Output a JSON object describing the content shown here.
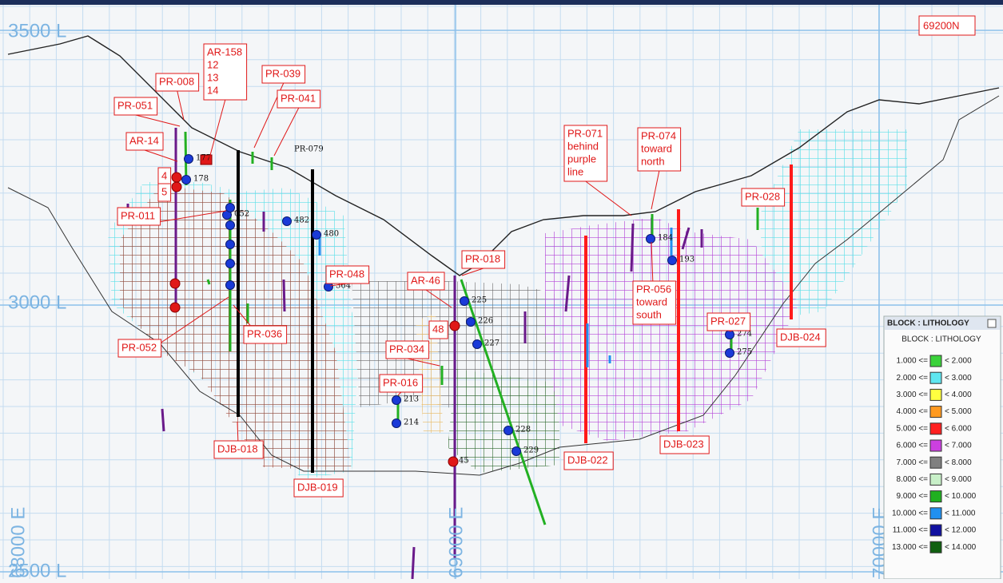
{
  "axes_labels": {
    "l3500": "3500 L",
    "l3000": "3000 L",
    "l2500": "2500 L",
    "e68000": "68000 E",
    "e69000": "69000 E",
    "e70000": "70000 E"
  },
  "section_label": "69200N",
  "callouts": [
    {
      "lines": [
        "PR-008"
      ]
    },
    {
      "lines": [
        "AR-158",
        "12",
        "13",
        "14"
      ]
    },
    {
      "lines": [
        "PR-039"
      ]
    },
    {
      "lines": [
        "PR-041"
      ]
    },
    {
      "lines": [
        "PR-051"
      ]
    },
    {
      "lines": [
        "AR-14"
      ]
    },
    {
      "lines": [
        "4"
      ]
    },
    {
      "lines": [
        "5"
      ]
    },
    {
      "lines": [
        "PR-011"
      ]
    },
    {
      "lines": [
        "PR-052"
      ]
    },
    {
      "lines": [
        "PR-036"
      ]
    },
    {
      "lines": [
        "DJB-018"
      ]
    },
    {
      "lines": [
        "DJB-019"
      ]
    },
    {
      "lines": [
        "PR-048"
      ]
    },
    {
      "lines": [
        "AR-46"
      ]
    },
    {
      "lines": [
        "PR-018"
      ]
    },
    {
      "lines": [
        "48"
      ]
    },
    {
      "lines": [
        "PR-034"
      ]
    },
    {
      "lines": [
        "PR-016"
      ]
    },
    {
      "lines": [
        "PR-071",
        "behind",
        "purple",
        "line"
      ]
    },
    {
      "lines": [
        "PR-074",
        "toward",
        "north"
      ]
    },
    {
      "lines": [
        "PR-028"
      ]
    },
    {
      "lines": [
        "PR-056",
        "toward",
        "south"
      ]
    },
    {
      "lines": [
        "PR-027"
      ]
    },
    {
      "lines": [
        "DJB-024"
      ]
    },
    {
      "lines": [
        "DJB-023"
      ]
    },
    {
      "lines": [
        "DJB-022"
      ]
    }
  ],
  "hole_labels": [
    "177",
    "178",
    "052",
    "482",
    "480",
    "364",
    "225",
    "226",
    "227",
    "213",
    "214",
    "228",
    "229",
    "184",
    "193",
    "274",
    "275",
    "45",
    "PR-079"
  ],
  "legend": {
    "title": "BLOCK : LITHOLOGY",
    "header": "BLOCK : LITHOLOGY",
    "rows": [
      {
        "from": "1.000 <=",
        "to": "< 2.000",
        "color": "#3ad23a"
      },
      {
        "from": "2.000 <=",
        "to": "< 3.000",
        "color": "#5fe6f0"
      },
      {
        "from": "3.000 <=",
        "to": "< 4.000",
        "color": "#ffff40"
      },
      {
        "from": "4.000 <=",
        "to": "< 5.000",
        "color": "#ff9a20"
      },
      {
        "from": "5.000 <=",
        "to": "< 6.000",
        "color": "#ff2020"
      },
      {
        "from": "6.000 <=",
        "to": "< 7.000",
        "color": "#cc40e0"
      },
      {
        "from": "7.000 <=",
        "to": "< 8.000",
        "color": "#808080"
      },
      {
        "from": "8.000 <=",
        "to": "< 9.000",
        "color": "#c8f0c8"
      },
      {
        "from": "9.000 <=",
        "to": "< 10.000",
        "color": "#20b020"
      },
      {
        "from": "10.000 <=",
        "to": "< 11.000",
        "color": "#2090f0"
      },
      {
        "from": "11.000 <=",
        "to": "< 12.000",
        "color": "#1010a0"
      },
      {
        "from": "13.000 <=",
        "to": "< 14.000",
        "color": "#106010"
      }
    ]
  }
}
